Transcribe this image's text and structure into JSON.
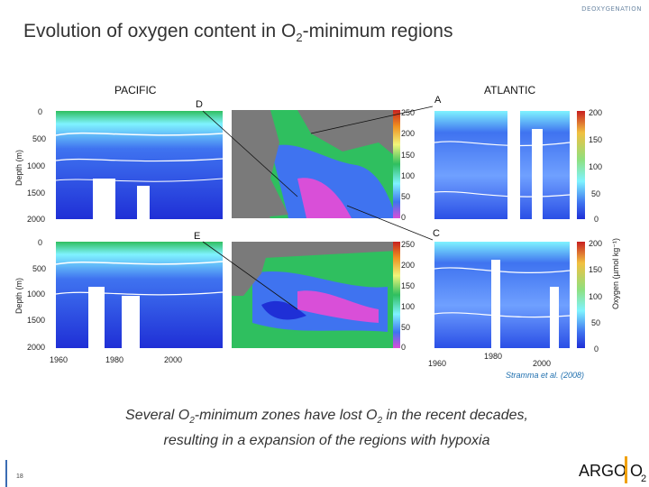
{
  "header": {
    "section_tag": "DEOXYGENATION",
    "title_prefix": "Evolution of oxygen content in O",
    "title_sub": "2",
    "title_suffix": "-minimum regions"
  },
  "figure": {
    "pacific_label": "PACIFIC",
    "atlantic_label": "ATLANTIC",
    "corner_labels": [
      "D",
      "A",
      "E",
      "C"
    ],
    "depth_label": "Depth (m)",
    "depth_ticks": [
      "0",
      "500",
      "1000",
      "1500",
      "2000"
    ],
    "year_ticks": [
      "1960",
      "1980",
      "2000"
    ],
    "map_colorbar_ticks": [
      "250",
      "200",
      "150",
      "100",
      "50",
      "0"
    ],
    "oxygen_colorbar_ticks": [
      "200",
      "150",
      "100",
      "50",
      "0"
    ],
    "oxygen_label": "Oxygen (µmol kg⁻¹)",
    "colors": {
      "deep_blue": "#1f2fd6",
      "mid_blue": "#3f73f0",
      "light_blue": "#9fd3ff",
      "cyan": "#7ff3ff",
      "green": "#2fbf5f",
      "yellow": "#f1f57a",
      "magenta": "#d94fd8",
      "land": "#7a7a7a"
    }
  },
  "credit": "Stramma et al. (2008)",
  "caption": {
    "part1": "Several O",
    "sub1": "2",
    "part2": "-minimum zones have lost O",
    "sub2": "2",
    "part3": " in the recent decades,",
    "line2": "resulting in a expansion of the regions with hypoxia"
  },
  "footer": {
    "page_number": "18",
    "logo_text": "ARGO",
    "logo_o2": "O",
    "logo_sub": "2"
  }
}
